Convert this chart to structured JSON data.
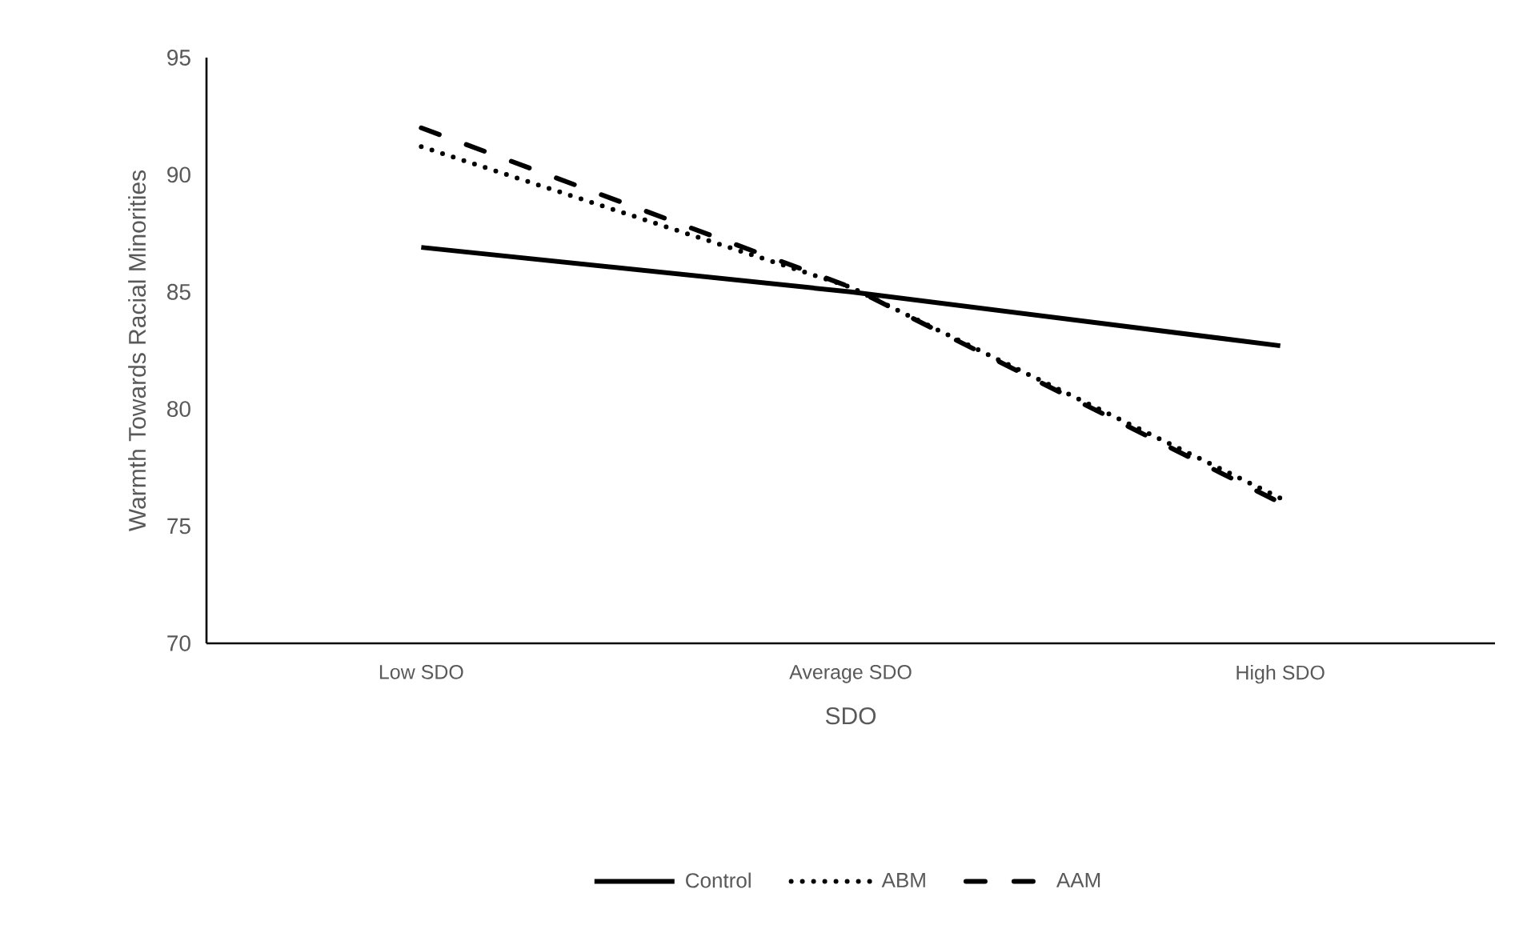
{
  "chart_data": {
    "type": "line",
    "xlabel": "SDO",
    "ylabel": "Warmth Towards Racial Minorities",
    "categories": [
      "Low SDO",
      "Average SDO",
      "High SDO"
    ],
    "series": [
      {
        "name": "Control",
        "color": "#000000",
        "line_style": "solid",
        "values": [
          86.9,
          85.0,
          82.7
        ]
      },
      {
        "name": "ABM",
        "color": "#000000",
        "line_style": "dotted",
        "values": [
          91.2,
          85.2,
          76.2
        ]
      },
      {
        "name": "AAM",
        "color": "#000000",
        "line_style": "dashed",
        "values": [
          92.0,
          85.2,
          76.0
        ]
      }
    ],
    "ylim": [
      70,
      95
    ],
    "yticks": [
      70,
      75,
      80,
      85,
      90,
      95
    ],
    "grid": false,
    "legend": "bottom",
    "marker": "none"
  }
}
